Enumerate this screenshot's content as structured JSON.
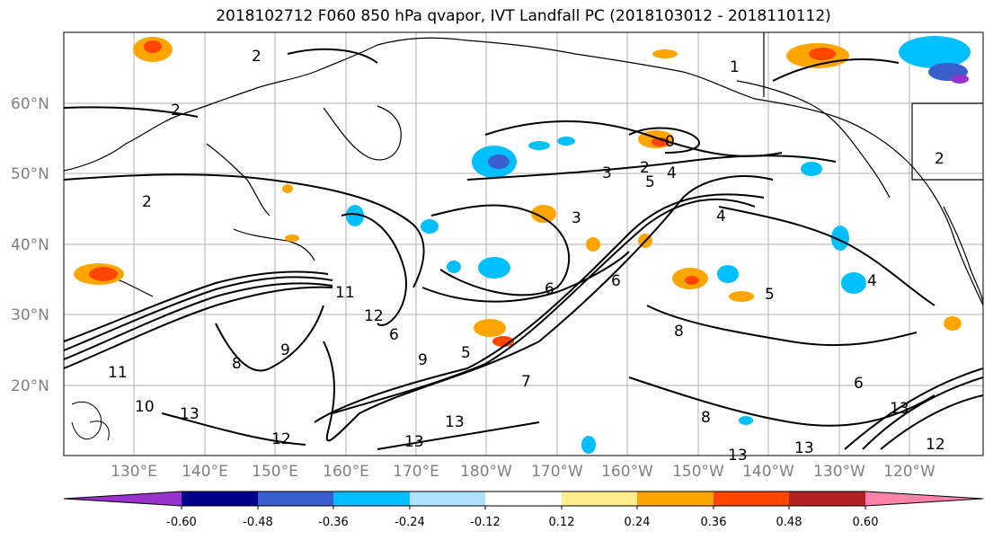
{
  "title": "2018102712 F060 850 hPa qvapor, IVT Landfall PC (2018103012 - 2018110112)",
  "lat_labels": [
    "60°N",
    "50°N",
    "40°N",
    "30°N",
    "20°N"
  ],
  "lon_labels": [
    "130°E",
    "140°E",
    "150°E",
    "160°E",
    "170°E",
    "180°W",
    "170°W",
    "160°W",
    "150°W",
    "140°W",
    "130°W",
    "120°W"
  ],
  "colorbar": {
    "colors": [
      "#9932cc",
      "#00008b",
      "#3a5fcd",
      "#00bfff",
      "#b0e2ff",
      "#ffffff",
      "#ffec8b",
      "#ffa500",
      "#ff4500",
      "#b22222",
      "#ff82ab"
    ],
    "tick_labels": [
      "-0.60",
      "-0.48",
      "-0.36",
      "-0.24",
      "-0.12",
      "0.12",
      "0.24",
      "0.36",
      "0.48",
      "0.60"
    ]
  },
  "contour_labels": [
    "2",
    "1",
    "2",
    "0",
    "3",
    "2",
    "4",
    "5",
    "2",
    "4",
    "6",
    "11",
    "12",
    "6",
    "5",
    "3",
    "6",
    "9",
    "5",
    "4",
    "8",
    "2",
    "13",
    "12",
    "13",
    "13",
    "13",
    "13",
    "12",
    "13",
    "8",
    "6",
    "11",
    "10",
    "9",
    "8",
    "7"
  ]
}
